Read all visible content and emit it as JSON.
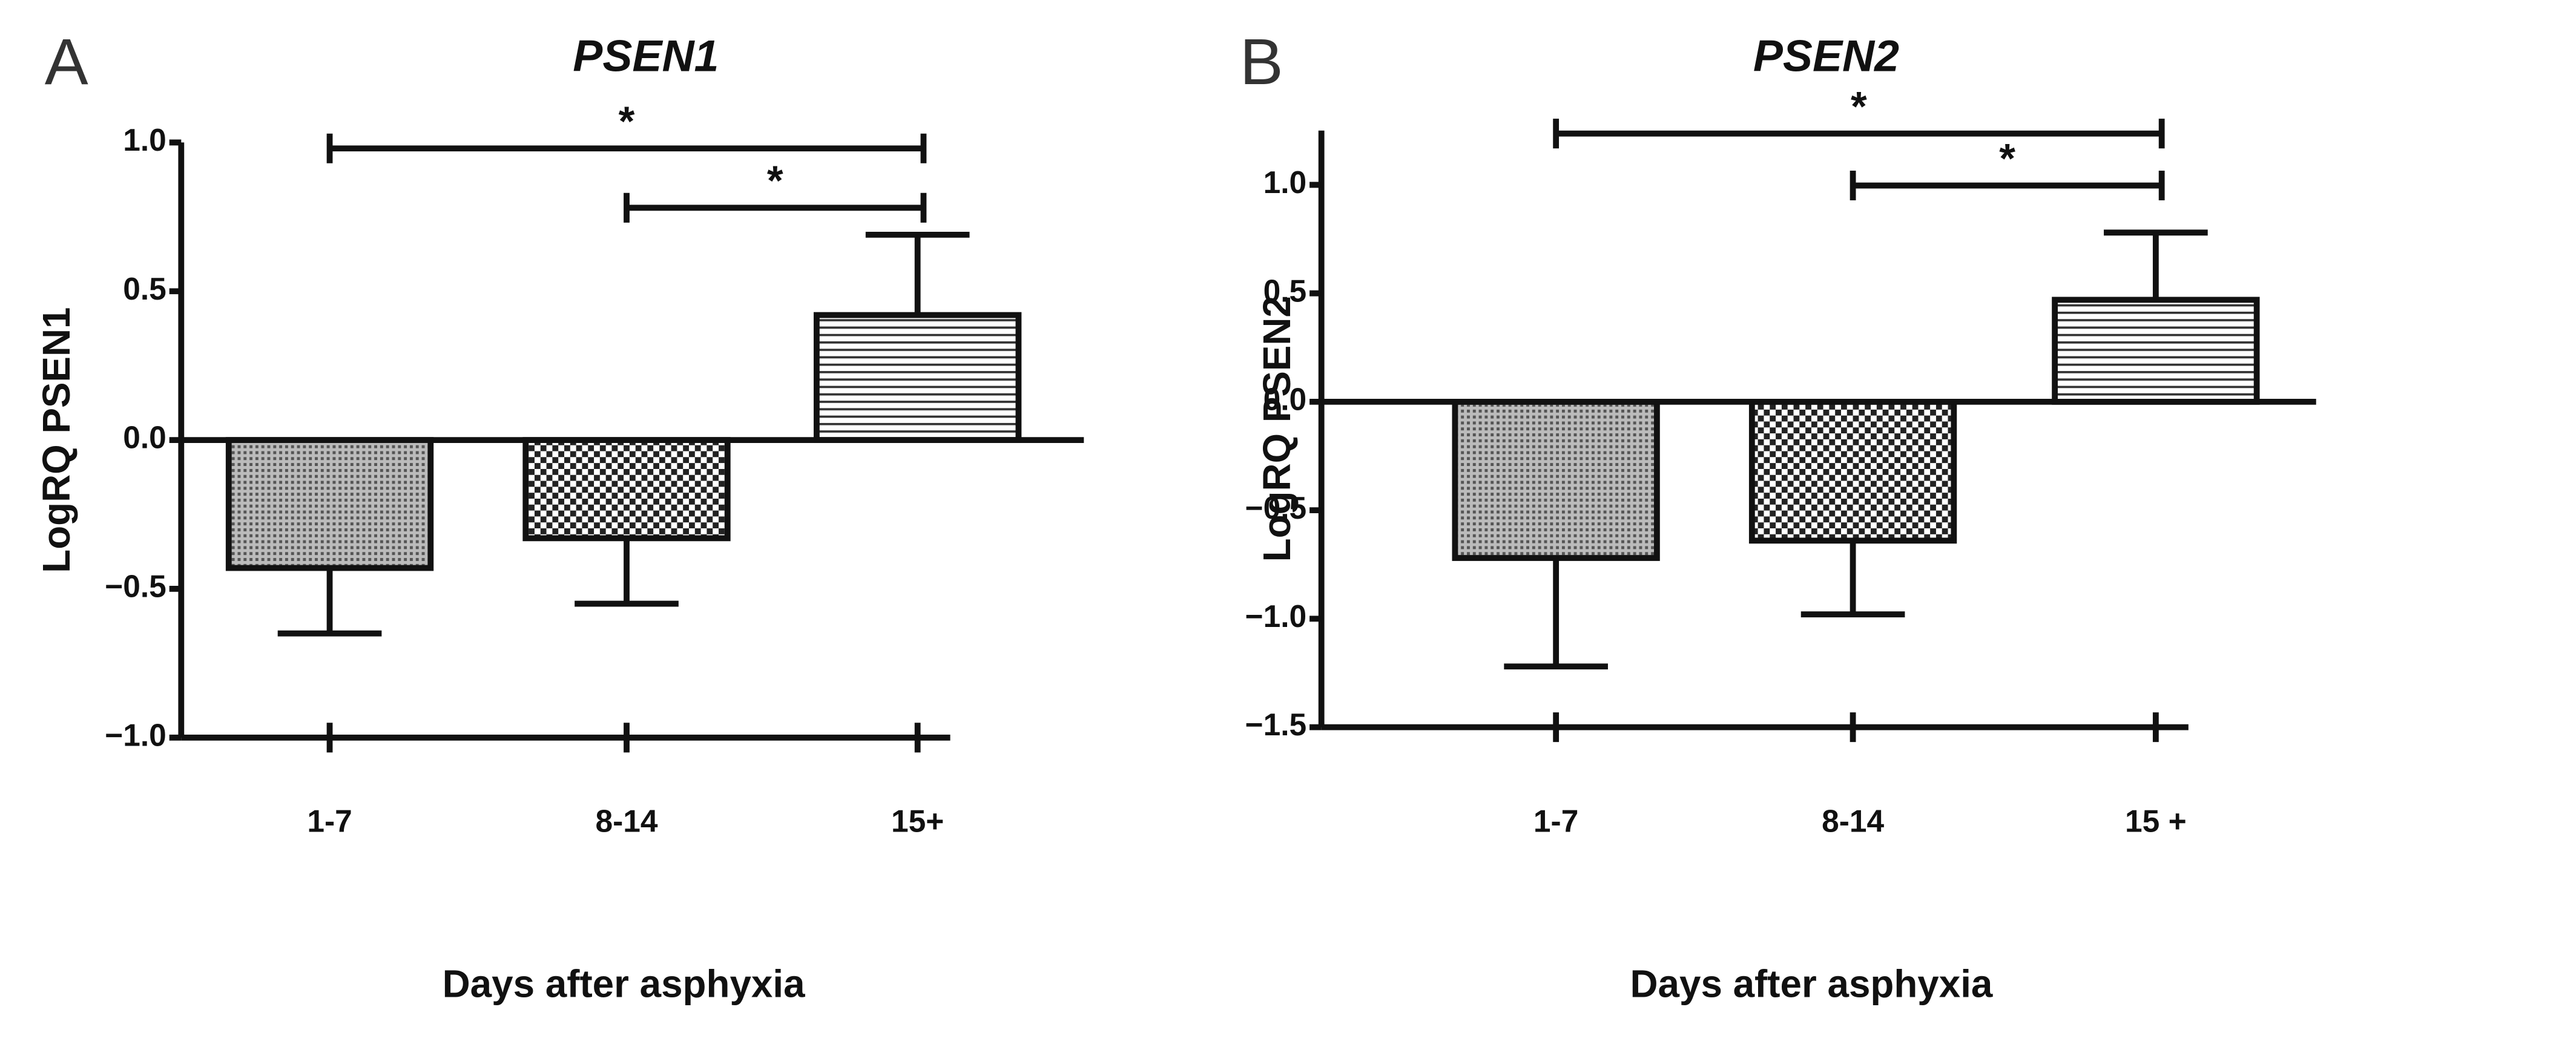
{
  "chart_data": [
    {
      "type": "bar",
      "panel": "A",
      "title": "PSEN1",
      "y_label": "LogRQ PSEN1",
      "x_label": "Days after asphyxia",
      "categories": [
        "1-7",
        "8-14",
        "15+"
      ],
      "values": [
        -0.43,
        -0.33,
        0.42
      ],
      "errors": [
        0.22,
        0.22,
        0.27
      ],
      "ylim": [
        -1,
        1
      ],
      "yticks": [
        {
          "value": -1,
          "label": "−1.0"
        },
        {
          "value": -0.5,
          "label": "−0.5"
        },
        {
          "value": 0,
          "label": "0.0"
        },
        {
          "value": 0.5,
          "label": "0.5"
        },
        {
          "value": 1,
          "label": "1.0"
        }
      ],
      "annotations": [
        {
          "from": 0,
          "to": 2,
          "label": "*"
        },
        {
          "from": 1,
          "to": 2,
          "label": "*"
        }
      ]
    },
    {
      "type": "bar",
      "panel": "B",
      "title": "PSEN2",
      "y_label": "LogRQ PSEN2",
      "x_label": "Days after asphyxia",
      "categories": [
        "1-7",
        "8-14",
        "15 +"
      ],
      "values": [
        -0.72,
        -0.64,
        0.47
      ],
      "errors": [
        0.5,
        0.34,
        0.31
      ],
      "ylim": [
        -1.5,
        1.25
      ],
      "yticks": [
        {
          "value": -1.5,
          "label": "−1.5"
        },
        {
          "value": -1,
          "label": "−1.0"
        },
        {
          "value": -0.5,
          "label": "−0.5"
        },
        {
          "value": 0,
          "label": "0.0"
        },
        {
          "value": 0.5,
          "label": "0.5"
        },
        {
          "value": 1,
          "label": "1.0"
        }
      ],
      "annotations": [
        {
          "from": 0,
          "to": 2,
          "label": "*"
        },
        {
          "from": 1,
          "to": 2,
          "label": "*"
        }
      ]
    }
  ]
}
